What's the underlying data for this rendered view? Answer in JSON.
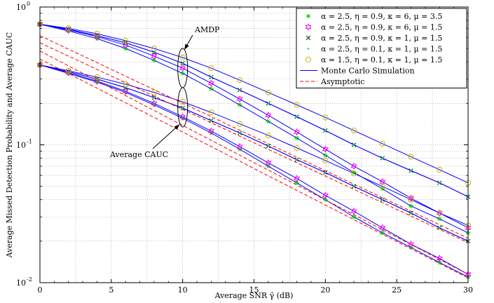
{
  "chart_data": {
    "type": "line",
    "xlabel": "Average SNR γ̄ (dB)",
    "ylabel": "Average Missed Detection Probability and Average CAUC",
    "xlim": [
      0,
      30
    ],
    "ylim": [
      0.01,
      1
    ],
    "yscale": "log",
    "grid": true,
    "legend_position": "top-right",
    "x_ticks": [
      "0",
      "5",
      "10",
      "15",
      "20",
      "25",
      "30"
    ],
    "y_ticks": [
      {
        "value": 1,
        "base": "10",
        "exp": "0"
      },
      {
        "value": 0.1,
        "base": "10",
        "exp": "-1"
      },
      {
        "value": 0.01,
        "base": "10",
        "exp": "-2"
      }
    ],
    "annotations": [
      {
        "text": "AMDP",
        "x": 10,
        "y": 0.36
      },
      {
        "text": "Average CAUC",
        "x": 10,
        "y": 0.17
      }
    ],
    "legend": [
      {
        "label": "α = 2.5, η = 0.9, κ = 6, μ = 3.5",
        "marker": "asterisk",
        "color": "#00cc00"
      },
      {
        "label": "α = 2.5, η = 0.9, κ = 6, μ = 1.5",
        "marker": "star",
        "color": "#ff00ff"
      },
      {
        "label": "α = 2.5, η = 0.9, κ = 1, μ = 1.5",
        "marker": "x",
        "color": "#004d00"
      },
      {
        "label": "α = 2.5, η = 0.1, κ = 1, μ = 1.5",
        "marker": "dot",
        "color": "#00bfbf"
      },
      {
        "label": "α = 1.5, η = 0.1, κ = 1, μ = 1.5",
        "marker": "circle",
        "color": "#c8b400"
      },
      {
        "label": "Monte Carlo Simulation",
        "line": "solid",
        "color": "#0000ff"
      },
      {
        "label": "Asymptotic",
        "line": "dashed",
        "color": "#ff0000"
      }
    ],
    "marker_x": [
      0,
      2,
      4,
      6,
      8,
      10,
      12,
      14,
      16,
      18,
      20,
      22,
      24,
      26,
      28,
      30
    ],
    "series": [
      {
        "group": "AMDP",
        "marker": "asterisk",
        "color": "#00cc00",
        "values": [
          0.75,
          0.67,
          0.59,
          0.5,
          0.41,
          0.33,
          0.255,
          0.195,
          0.148,
          0.112,
          0.084,
          0.063,
          0.048,
          0.036,
          0.029,
          0.023
        ]
      },
      {
        "group": "AMDP",
        "marker": "star",
        "color": "#ff00ff",
        "values": [
          0.75,
          0.68,
          0.61,
          0.53,
          0.44,
          0.36,
          0.28,
          0.215,
          0.164,
          0.124,
          0.093,
          0.07,
          0.054,
          0.041,
          0.032,
          0.025
        ]
      },
      {
        "group": "AMDP",
        "marker": "x",
        "color": "#004d00",
        "values": [
          0.75,
          0.69,
          0.62,
          0.55,
          0.47,
          0.39,
          0.31,
          0.25,
          0.2,
          0.16,
          0.127,
          0.1,
          0.08,
          0.065,
          0.053,
          0.042
        ]
      },
      {
        "group": "AMDP",
        "marker": "dot",
        "color": "#00bfbf",
        "values": [
          0.75,
          0.69,
          0.62,
          0.55,
          0.47,
          0.39,
          0.31,
          0.25,
          0.2,
          0.16,
          0.127,
          0.1,
          0.08,
          0.065,
          0.053,
          0.042
        ]
      },
      {
        "group": "AMDP",
        "marker": "circle",
        "color": "#c8b400",
        "values": [
          0.75,
          0.7,
          0.64,
          0.57,
          0.5,
          0.43,
          0.36,
          0.295,
          0.24,
          0.195,
          0.158,
          0.127,
          0.102,
          0.082,
          0.066,
          0.053
        ]
      },
      {
        "group": "Average CAUC",
        "marker": "asterisk",
        "color": "#00cc00",
        "values": [
          0.38,
          0.33,
          0.285,
          0.24,
          0.195,
          0.156,
          0.122,
          0.093,
          0.07,
          0.053,
          0.04,
          0.03,
          0.023,
          0.018,
          0.014,
          0.011
        ]
      },
      {
        "group": "Average CAUC",
        "marker": "star",
        "color": "#ff00ff",
        "values": [
          0.38,
          0.335,
          0.29,
          0.245,
          0.2,
          0.16,
          0.126,
          0.097,
          0.074,
          0.057,
          0.043,
          0.033,
          0.025,
          0.019,
          0.015,
          0.0115
        ]
      },
      {
        "group": "Average CAUC",
        "marker": "x",
        "color": "#004d00",
        "values": [
          0.38,
          0.34,
          0.3,
          0.26,
          0.22,
          0.185,
          0.15,
          0.122,
          0.098,
          0.078,
          0.063,
          0.05,
          0.04,
          0.032,
          0.025,
          0.02
        ]
      },
      {
        "group": "Average CAUC",
        "marker": "dot",
        "color": "#00bfbf",
        "values": [
          0.38,
          0.34,
          0.3,
          0.26,
          0.22,
          0.185,
          0.15,
          0.122,
          0.098,
          0.078,
          0.063,
          0.05,
          0.04,
          0.032,
          0.025,
          0.02
        ]
      },
      {
        "group": "Average CAUC",
        "marker": "circle",
        "color": "#c8b400",
        "values": [
          0.38,
          0.345,
          0.31,
          0.275,
          0.24,
          0.205,
          0.172,
          0.142,
          0.117,
          0.095,
          0.077,
          0.062,
          0.05,
          0.04,
          0.032,
          0.026
        ]
      }
    ],
    "asymptotic": [
      {
        "x": [
          0,
          30
        ],
        "values": [
          0.62,
          0.021
        ]
      },
      {
        "x": [
          0,
          30
        ],
        "values": [
          0.55,
          0.0195
        ]
      },
      {
        "x": [
          0,
          30
        ],
        "values": [
          0.48,
          0.0115
        ]
      },
      {
        "x": [
          0,
          30
        ],
        "values": [
          0.42,
          0.0108
        ]
      }
    ]
  }
}
